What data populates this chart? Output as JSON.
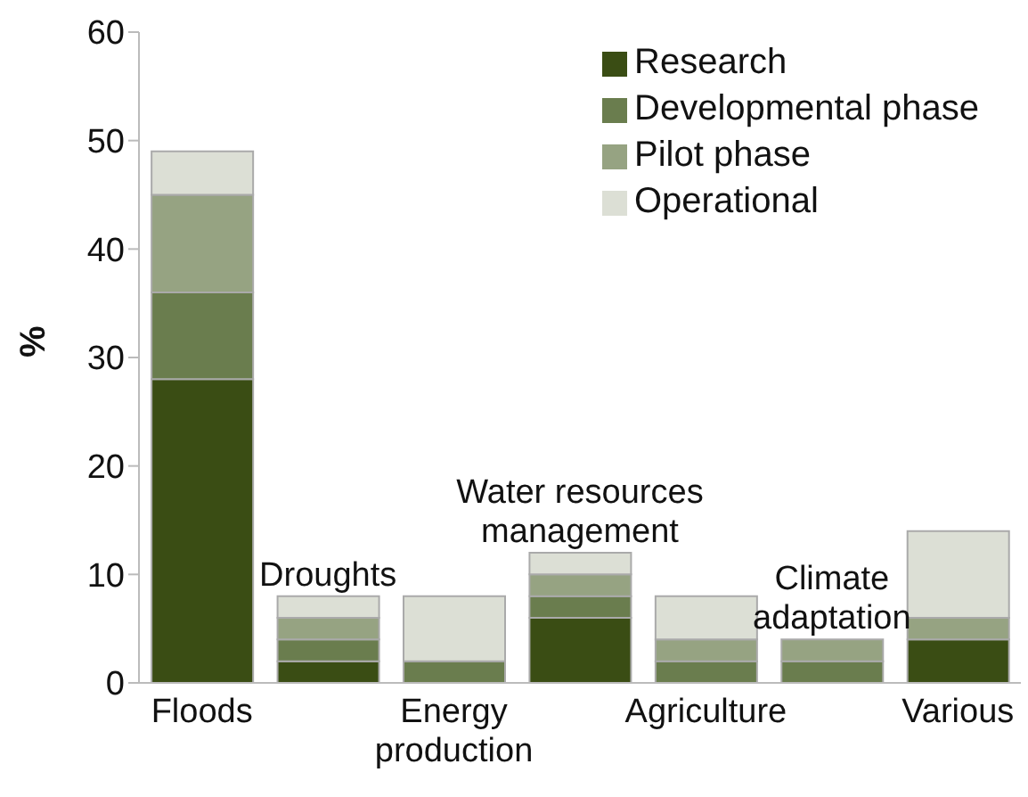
{
  "chart_data": {
    "type": "bar",
    "stacked": true,
    "ylabel": "%",
    "categories": [
      "Floods",
      "Droughts",
      "Energy production",
      "Water resources management",
      "Agriculture",
      "Climate adaptation",
      "Various"
    ],
    "series": [
      {
        "name": "Research",
        "color": "#3a4d14",
        "values": [
          28,
          2,
          0,
          6,
          0,
          0,
          4
        ]
      },
      {
        "name": "Developmental phase",
        "color": "#6a7d4e",
        "values": [
          8,
          2,
          2,
          2,
          2,
          2,
          0
        ]
      },
      {
        "name": "Pilot phase",
        "color": "#96a382",
        "values": [
          9,
          2,
          0,
          2,
          2,
          2,
          2
        ]
      },
      {
        "name": "Operational",
        "color": "#dcdfd5",
        "values": [
          4,
          2,
          6,
          2,
          4,
          0,
          8
        ]
      }
    ],
    "ylim": [
      0,
      60
    ],
    "yticks": [
      0,
      10,
      20,
      30,
      40,
      50,
      60
    ],
    "grid": false,
    "legend": "top right"
  }
}
